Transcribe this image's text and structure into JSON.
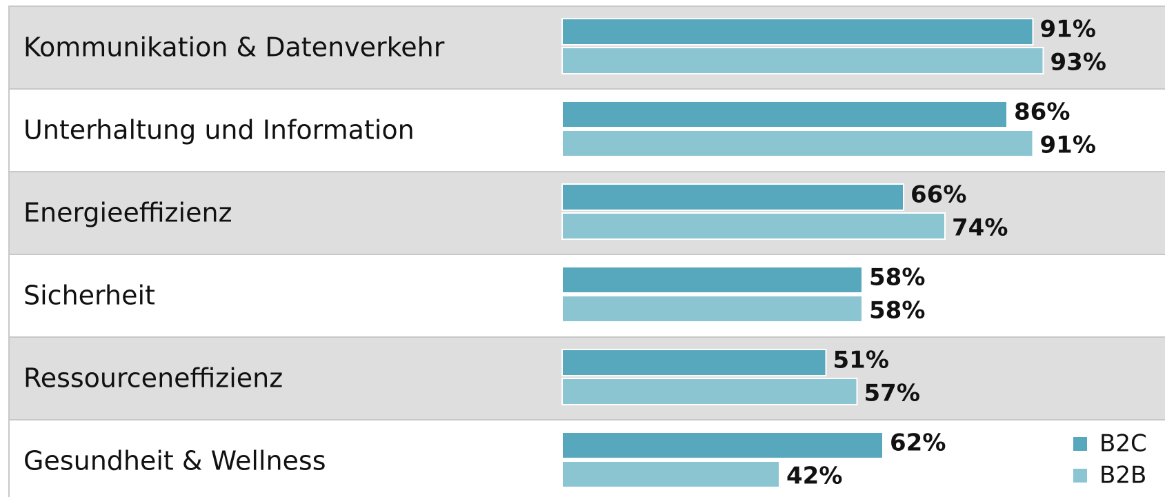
{
  "chart_data": {
    "type": "bar",
    "orientation": "horizontal",
    "categories": [
      "Kommunikation & Datenverkehr",
      "Unterhaltung und Information",
      "Energieeffizienz",
      "Sicherheit",
      "Ressourceneffizienz",
      "Gesundheit & Wellness"
    ],
    "series": [
      {
        "name": "B2C",
        "color": "#58a8bd",
        "values": [
          91,
          86,
          66,
          58,
          51,
          62
        ],
        "value_labels": [
          "91%",
          "86%",
          "66%",
          "58%",
          "51%",
          "62%"
        ]
      },
      {
        "name": "B2B",
        "color": "#8cc5d2",
        "values": [
          93,
          91,
          74,
          58,
          57,
          42
        ],
        "value_labels": [
          "93%",
          "91%",
          "74%",
          "58%",
          "57%",
          "42%"
        ]
      }
    ],
    "legend": "lower right"
  }
}
